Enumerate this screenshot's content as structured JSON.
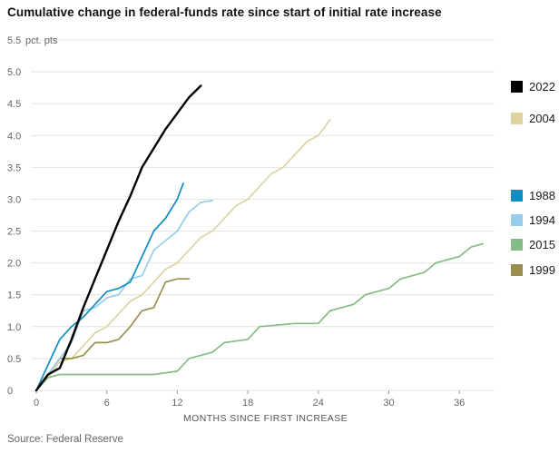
{
  "title": "Cumulative change in federal-funds rate since start of initial rate increase",
  "source": "Source: Federal Reserve",
  "y_axis": {
    "unit_label": "pct. pts",
    "ticks": [
      0,
      0.5,
      1,
      1.5,
      2,
      2.5,
      3,
      3.5,
      4,
      4.5,
      5,
      5.5
    ]
  },
  "x_axis": {
    "label": "MONTHS SINCE FIRST INCREASE",
    "ticks": [
      0,
      6,
      12,
      18,
      24,
      30,
      36
    ]
  },
  "legend": [
    {
      "label": "2022",
      "color": "#000000"
    },
    {
      "label": "2004",
      "color": "#dcd3a0"
    },
    {
      "label": "1988",
      "color": "#0f8dc4"
    },
    {
      "label": "1994",
      "color": "#97cde9"
    },
    {
      "label": "2015",
      "color": "#85bb86"
    },
    {
      "label": "1999",
      "color": "#998f4f"
    }
  ],
  "colors": {
    "grid": "#e6e4df",
    "tick_text": "#666666"
  },
  "chart_data": {
    "type": "line",
    "title": "Cumulative change in federal-funds rate since start of initial rate increase",
    "xlabel": "MONTHS SINCE FIRST INCREASE",
    "ylabel": "pct. pts",
    "xlim": [
      0,
      39
    ],
    "ylim": [
      0,
      5.5
    ],
    "grid": "horizontal",
    "legend_position": "right",
    "series": [
      {
        "name": "2004",
        "color": "#dcd3a0",
        "points": [
          [
            0,
            0
          ],
          [
            1,
            0.2
          ],
          [
            2,
            0.45
          ],
          [
            3,
            0.5
          ],
          [
            4,
            0.7
          ],
          [
            5,
            0.9
          ],
          [
            6,
            1.0
          ],
          [
            7,
            1.2
          ],
          [
            8,
            1.4
          ],
          [
            9,
            1.5
          ],
          [
            10,
            1.7
          ],
          [
            11,
            1.9
          ],
          [
            12,
            2.0
          ],
          [
            13,
            2.2
          ],
          [
            14,
            2.4
          ],
          [
            15,
            2.5
          ],
          [
            16,
            2.7
          ],
          [
            17,
            2.9
          ],
          [
            18,
            3.0
          ],
          [
            19,
            3.2
          ],
          [
            20,
            3.4
          ],
          [
            21,
            3.5
          ],
          [
            22,
            3.7
          ],
          [
            23,
            3.9
          ],
          [
            24,
            4.0
          ],
          [
            25,
            4.25
          ]
        ]
      },
      {
        "name": "1999",
        "color": "#998f4f",
        "points": [
          [
            0,
            0
          ],
          [
            1,
            0.25
          ],
          [
            2,
            0.5
          ],
          [
            3,
            0.5
          ],
          [
            4,
            0.55
          ],
          [
            5,
            0.75
          ],
          [
            6,
            0.75
          ],
          [
            7,
            0.8
          ],
          [
            8,
            1.0
          ],
          [
            9,
            1.25
          ],
          [
            10,
            1.3
          ],
          [
            11,
            1.7
          ],
          [
            12,
            1.75
          ],
          [
            13,
            1.75
          ]
        ]
      },
      {
        "name": "2015",
        "color": "#85bb86",
        "points": [
          [
            0,
            0
          ],
          [
            1,
            0.2
          ],
          [
            2,
            0.25
          ],
          [
            6,
            0.25
          ],
          [
            10,
            0.25
          ],
          [
            12,
            0.3
          ],
          [
            13,
            0.5
          ],
          [
            15,
            0.6
          ],
          [
            16,
            0.75
          ],
          [
            18,
            0.8
          ],
          [
            19,
            1.0
          ],
          [
            22,
            1.05
          ],
          [
            24,
            1.05
          ],
          [
            25,
            1.25
          ],
          [
            27,
            1.35
          ],
          [
            28,
            1.5
          ],
          [
            30,
            1.6
          ],
          [
            31,
            1.75
          ],
          [
            33,
            1.85
          ],
          [
            34,
            2.0
          ],
          [
            36,
            2.1
          ],
          [
            37,
            2.25
          ],
          [
            38,
            2.3
          ]
        ]
      },
      {
        "name": "1994",
        "color": "#97cde9",
        "points": [
          [
            0,
            0
          ],
          [
            1,
            0.25
          ],
          [
            2,
            0.5
          ],
          [
            3,
            0.75
          ],
          [
            4,
            1.25
          ],
          [
            5,
            1.3
          ],
          [
            6,
            1.45
          ],
          [
            7,
            1.5
          ],
          [
            8,
            1.75
          ],
          [
            9,
            1.8
          ],
          [
            10,
            2.2
          ],
          [
            11,
            2.35
          ],
          [
            12,
            2.5
          ],
          [
            13,
            2.8
          ],
          [
            14,
            2.95
          ],
          [
            15,
            2.98
          ]
        ]
      },
      {
        "name": "1988",
        "color": "#0f8dc4",
        "points": [
          [
            0,
            0
          ],
          [
            1,
            0.4
          ],
          [
            2,
            0.8
          ],
          [
            3,
            1.0
          ],
          [
            4,
            1.15
          ],
          [
            5,
            1.35
          ],
          [
            6,
            1.55
          ],
          [
            7,
            1.6
          ],
          [
            8,
            1.7
          ],
          [
            9,
            2.1
          ],
          [
            10,
            2.5
          ],
          [
            11,
            2.7
          ],
          [
            12,
            3.0
          ],
          [
            12.5,
            3.25
          ]
        ]
      },
      {
        "name": "2022",
        "color": "#000000",
        "points": [
          [
            0,
            0
          ],
          [
            1,
            0.25
          ],
          [
            2,
            0.35
          ],
          [
            3,
            0.8
          ],
          [
            4,
            1.3
          ],
          [
            5,
            1.75
          ],
          [
            6,
            2.2
          ],
          [
            7,
            2.65
          ],
          [
            8,
            3.05
          ],
          [
            9,
            3.5
          ],
          [
            10,
            3.8
          ],
          [
            11,
            4.1
          ],
          [
            12,
            4.35
          ],
          [
            13,
            4.6
          ],
          [
            14,
            4.78
          ]
        ]
      }
    ]
  }
}
